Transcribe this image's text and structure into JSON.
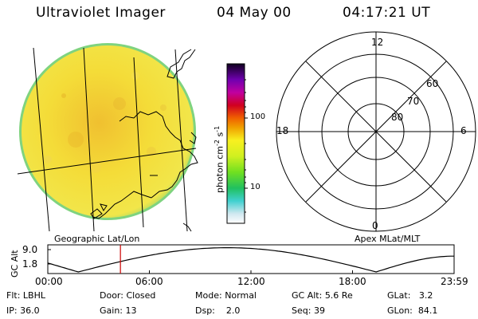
{
  "header": {
    "instrument": "Ultraviolet Imager",
    "date": "04 May 00",
    "time": "04:17:21 UT"
  },
  "colorbar": {
    "unit_prefix": "photon cm",
    "unit_exp1": "-2",
    "unit_mid": "s",
    "unit_exp2": "-1",
    "ticks": [
      "100",
      "10"
    ]
  },
  "polar_plot": {
    "clock": {
      "top": "12",
      "left": "18",
      "right": "6",
      "bottom": "0"
    },
    "lat_labels": [
      "60",
      "70",
      "80"
    ]
  },
  "panel_labels": {
    "left": "Geographic Lat/Lon",
    "right": "Apex MLat/MLT"
  },
  "timeline": {
    "ylabel": "GC Alt",
    "ytick_top": "9.0",
    "ytick_bottom": "1.8",
    "xticks": [
      "00:00",
      "06:00",
      "12:00",
      "18:00",
      "23:59"
    ],
    "current_hour": 4.29
  },
  "info": {
    "row1": {
      "flt_label": "Flt:",
      "flt_value": "LBHL",
      "door_label": "Door:",
      "door_value": "Closed",
      "mode_label": "Mode:",
      "mode_value": "Normal",
      "gcalt_label": "GC Alt:",
      "gcalt_value": "5.6 Re",
      "glat_label": "GLat:",
      "glat_value": "3.2"
    },
    "row2": {
      "ip_label": "IP:",
      "ip_value": "36.0",
      "gain_label": "Gain:",
      "gain_value": "13",
      "dsp_label": "Dsp:",
      "dsp_value": "2.0",
      "seq_label": "Seq:",
      "seq_value": "39",
      "glon_label": "GLon:",
      "glon_value": "84.1"
    }
  },
  "colors": {
    "earth_fill": "#f2e23a",
    "earth_edge": "#7fd37f",
    "marker": "#cc0000"
  }
}
